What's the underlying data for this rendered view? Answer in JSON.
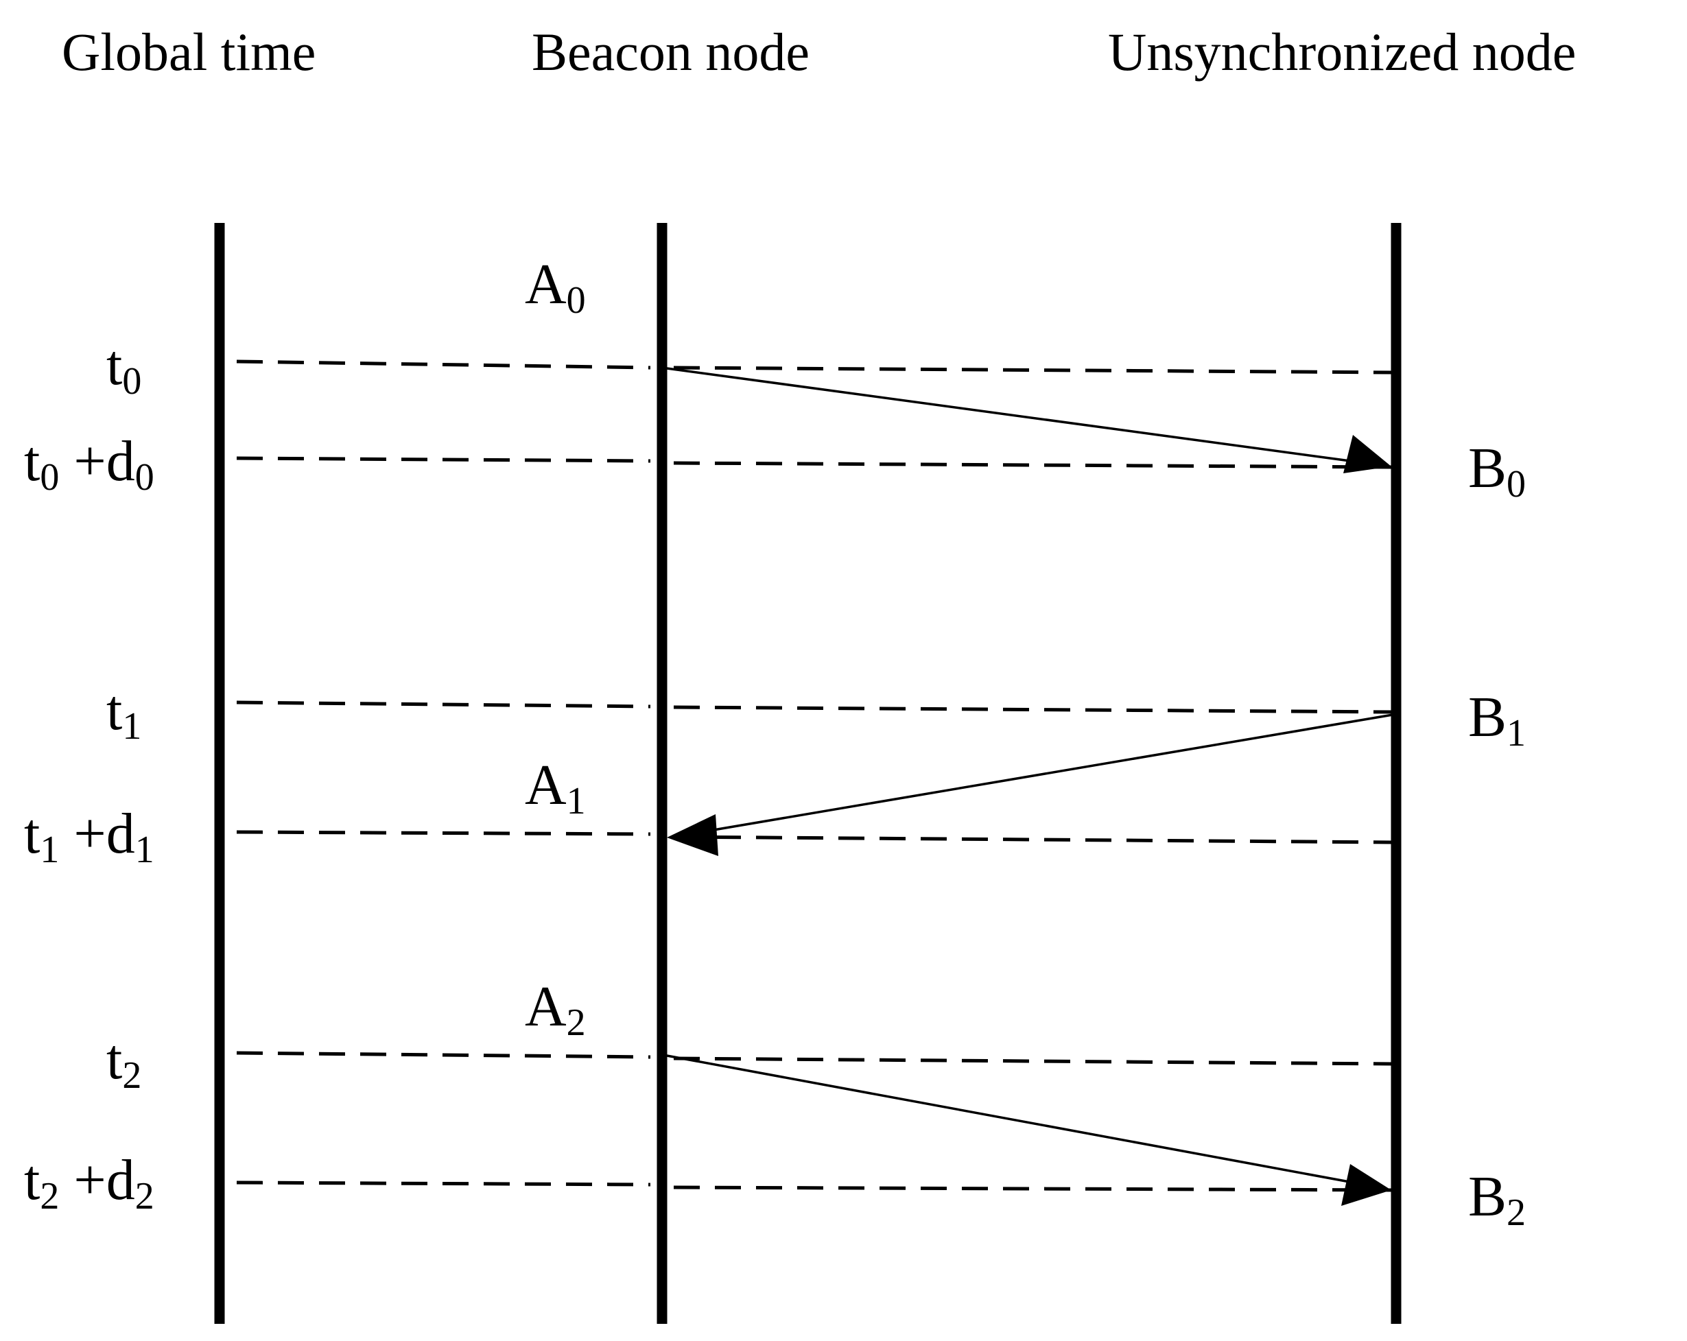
{
  "headers": {
    "global_time": "Global time",
    "beacon_node": "Beacon node",
    "unsynchronized_node": "Unsynchronized node"
  },
  "time_labels": [
    {
      "base": "t",
      "sub": "0",
      "suffix_op": "",
      "suffix_base": "",
      "suffix_sub": ""
    },
    {
      "base": "t",
      "sub": "0",
      "suffix_op": " +",
      "suffix_base": "d",
      "suffix_sub": "0"
    },
    {
      "base": "t",
      "sub": "1",
      "suffix_op": "",
      "suffix_base": "",
      "suffix_sub": ""
    },
    {
      "base": "t",
      "sub": "1",
      "suffix_op": " +",
      "suffix_base": "d",
      "suffix_sub": "1"
    },
    {
      "base": "t",
      "sub": "2",
      "suffix_op": "",
      "suffix_base": "",
      "suffix_sub": ""
    },
    {
      "base": "t",
      "sub": "2",
      "suffix_op": " +",
      "suffix_base": "d",
      "suffix_sub": "2"
    }
  ],
  "beacon_events": [
    {
      "base": "A",
      "sub": "0"
    },
    {
      "base": "A",
      "sub": "1"
    },
    {
      "base": "A",
      "sub": "2"
    }
  ],
  "unsync_events": [
    {
      "base": "B",
      "sub": "0"
    },
    {
      "base": "B",
      "sub": "1"
    },
    {
      "base": "B",
      "sub": "2"
    }
  ],
  "messages": [
    {
      "from": "beacon",
      "to": "unsynchronized",
      "send_event": "A0",
      "receive_event": "B0"
    },
    {
      "from": "unsynchronized",
      "to": "beacon",
      "send_event": "B1",
      "receive_event": "A1"
    },
    {
      "from": "beacon",
      "to": "unsynchronized",
      "send_event": "A2",
      "receive_event": "B2"
    }
  ]
}
